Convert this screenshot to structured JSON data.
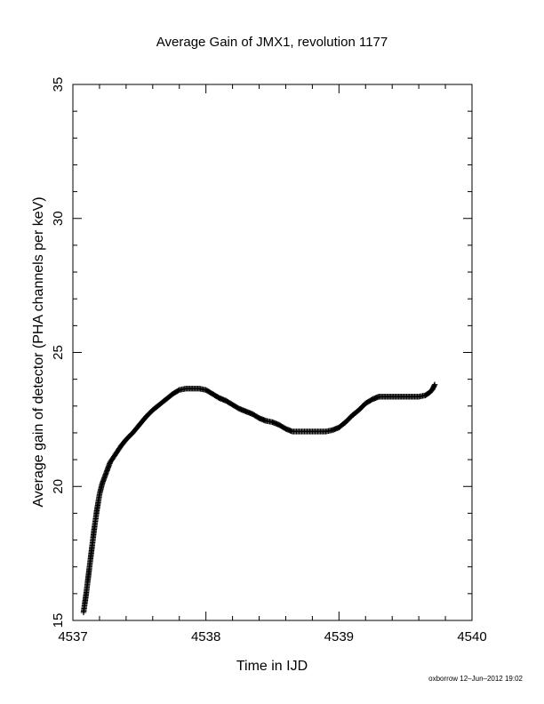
{
  "chart_data": {
    "type": "scatter",
    "title": "Average Gain of JMX1, revolution 1177",
    "xlabel": "Time in IJD",
    "ylabel": "Average gain of detector (PHA channels per keV)",
    "xlim": [
      4537,
      4540
    ],
    "ylim": [
      15,
      35
    ],
    "x_ticks": [
      "4537",
      "4538",
      "4539",
      "4540"
    ],
    "y_ticks": [
      "15",
      "20",
      "25",
      "30",
      "35"
    ],
    "x_minor_step": 0.2,
    "y_minor_step": 1,
    "marker": "plus",
    "grid": false,
    "series": [
      {
        "points": [
          [
            4537.08,
            15.3
          ],
          [
            4537.1,
            16.0
          ],
          [
            4537.12,
            16.8
          ],
          [
            4537.14,
            17.6
          ],
          [
            4537.16,
            18.4
          ],
          [
            4537.18,
            19.1
          ],
          [
            4537.2,
            19.7
          ],
          [
            4537.22,
            20.1
          ],
          [
            4537.25,
            20.5
          ],
          [
            4537.28,
            20.9
          ],
          [
            4537.32,
            21.2
          ],
          [
            4537.36,
            21.5
          ],
          [
            4537.4,
            21.75
          ],
          [
            4537.45,
            22.0
          ],
          [
            4537.5,
            22.3
          ],
          [
            4537.55,
            22.6
          ],
          [
            4537.6,
            22.85
          ],
          [
            4537.65,
            23.05
          ],
          [
            4537.7,
            23.25
          ],
          [
            4537.75,
            23.45
          ],
          [
            4537.8,
            23.6
          ],
          [
            4537.85,
            23.65
          ],
          [
            4537.9,
            23.65
          ],
          [
            4537.95,
            23.65
          ],
          [
            4538.0,
            23.6
          ],
          [
            4538.05,
            23.45
          ],
          [
            4538.1,
            23.3
          ],
          [
            4538.15,
            23.2
          ],
          [
            4538.2,
            23.05
          ],
          [
            4538.25,
            22.9
          ],
          [
            4538.3,
            22.8
          ],
          [
            4538.35,
            22.7
          ],
          [
            4538.4,
            22.55
          ],
          [
            4538.45,
            22.45
          ],
          [
            4538.5,
            22.4
          ],
          [
            4538.55,
            22.3
          ],
          [
            4538.6,
            22.15
          ],
          [
            4538.65,
            22.05
          ],
          [
            4538.7,
            22.05
          ],
          [
            4538.75,
            22.05
          ],
          [
            4538.8,
            22.05
          ],
          [
            4538.85,
            22.05
          ],
          [
            4538.9,
            22.05
          ],
          [
            4538.95,
            22.1
          ],
          [
            4539.0,
            22.2
          ],
          [
            4539.05,
            22.4
          ],
          [
            4539.1,
            22.65
          ],
          [
            4539.15,
            22.85
          ],
          [
            4539.2,
            23.1
          ],
          [
            4539.25,
            23.25
          ],
          [
            4539.3,
            23.35
          ],
          [
            4539.35,
            23.35
          ],
          [
            4539.4,
            23.35
          ],
          [
            4539.45,
            23.35
          ],
          [
            4539.5,
            23.35
          ],
          [
            4539.55,
            23.35
          ],
          [
            4539.6,
            23.35
          ],
          [
            4539.65,
            23.4
          ],
          [
            4539.68,
            23.5
          ],
          [
            4539.7,
            23.6
          ],
          [
            4539.72,
            23.8
          ]
        ]
      }
    ]
  },
  "footer": {
    "credit": "oxborrow 12–Jun–2012 19:02"
  }
}
